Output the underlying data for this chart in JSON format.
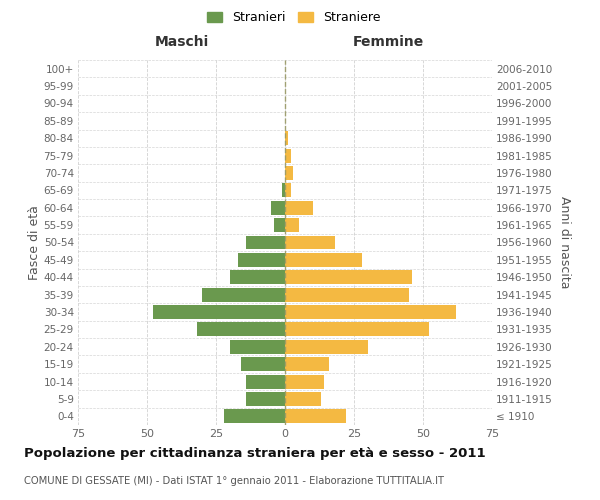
{
  "age_groups": [
    "0-4",
    "5-9",
    "10-14",
    "15-19",
    "20-24",
    "25-29",
    "30-34",
    "35-39",
    "40-44",
    "45-49",
    "50-54",
    "55-59",
    "60-64",
    "65-69",
    "70-74",
    "75-79",
    "80-84",
    "85-89",
    "90-94",
    "95-99",
    "100+"
  ],
  "birth_years": [
    "2006-2010",
    "2001-2005",
    "1996-2000",
    "1991-1995",
    "1986-1990",
    "1981-1985",
    "1976-1980",
    "1971-1975",
    "1966-1970",
    "1961-1965",
    "1956-1960",
    "1951-1955",
    "1946-1950",
    "1941-1945",
    "1936-1940",
    "1931-1935",
    "1926-1930",
    "1921-1925",
    "1916-1920",
    "1911-1915",
    "≤ 1910"
  ],
  "maschi": [
    22,
    14,
    14,
    16,
    20,
    32,
    48,
    30,
    20,
    17,
    14,
    4,
    5,
    1,
    0,
    0,
    0,
    0,
    0,
    0,
    0
  ],
  "femmine": [
    22,
    13,
    14,
    16,
    30,
    52,
    62,
    45,
    46,
    28,
    18,
    5,
    10,
    2,
    3,
    2,
    1,
    0,
    0,
    0,
    0
  ],
  "maschi_color": "#6a994e",
  "femmine_color": "#f4b942",
  "background_color": "#ffffff",
  "grid_color": "#cccccc",
  "title": "Popolazione per cittadinanza straniera per età e sesso - 2011",
  "subtitle": "COMUNE DI GESSATE (MI) - Dati ISTAT 1° gennaio 2011 - Elaborazione TUTTITALIA.IT",
  "ylabel_left": "Fasce di età",
  "ylabel_right": "Anni di nascita",
  "xlabel_left": "Maschi",
  "xlabel_right": "Femmine",
  "xlim": 75,
  "legend_stranieri": "Stranieri",
  "legend_straniere": "Straniere"
}
